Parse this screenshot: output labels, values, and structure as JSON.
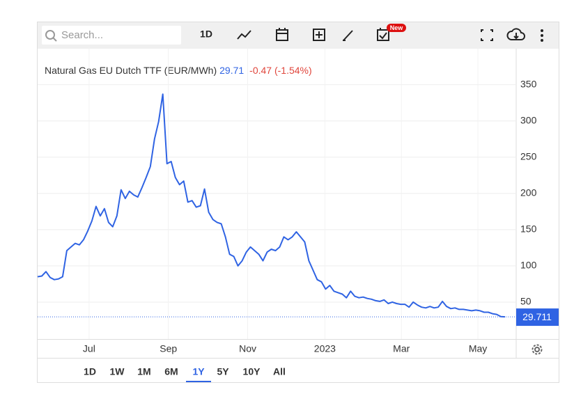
{
  "toolbar": {
    "search_placeholder": "Search...",
    "interval": "1D",
    "badge": "New"
  },
  "chart_data": {
    "type": "line",
    "title": "Natural Gas EU Dutch TTF (EUR/MWh)",
    "last_price": "29.71",
    "change": "-0.47 (-1.54%)",
    "color": "#2f63e3",
    "values": [
      85,
      86,
      92,
      84,
      81,
      82,
      85,
      121,
      126,
      131,
      129,
      136,
      148,
      162,
      182,
      169,
      179,
      160,
      154,
      169,
      205,
      193,
      203,
      198,
      195,
      208,
      222,
      237,
      275,
      299,
      337,
      241,
      244,
      222,
      212,
      217,
      188,
      190,
      181,
      183,
      206,
      174,
      164,
      160,
      158,
      140,
      116,
      113,
      100,
      107,
      119,
      126,
      121,
      116,
      107,
      119,
      123,
      121,
      126,
      140,
      136,
      140,
      147,
      140,
      133,
      107,
      94,
      81,
      78,
      68,
      73,
      65,
      63,
      61,
      56,
      65,
      58,
      56,
      57,
      55,
      54,
      52,
      51,
      53,
      48,
      50,
      48,
      47,
      47,
      43,
      50,
      46,
      43,
      42,
      44,
      42,
      43,
      51,
      44,
      41,
      42,
      40,
      40,
      39,
      38,
      39,
      38,
      36,
      36,
      34,
      33,
      30,
      29.711
    ],
    "xlim": [
      0,
      114.67
    ],
    "xticks": [
      {
        "value": 12.33,
        "label": "Jul"
      },
      {
        "value": 31.33,
        "label": "Sep"
      },
      {
        "value": 50.33,
        "label": "Nov"
      },
      {
        "value": 68.83,
        "label": "2023"
      },
      {
        "value": 87.17,
        "label": "Mar"
      },
      {
        "value": 105.5,
        "label": "May"
      }
    ],
    "ylim": [
      0,
      390
    ],
    "yticks": [
      50,
      100,
      150,
      200,
      250,
      300,
      350
    ],
    "grid": true
  },
  "ranges": [
    "1D",
    "1W",
    "1M",
    "6M",
    "1Y",
    "5Y",
    "10Y",
    "All"
  ],
  "active_range": 4
}
